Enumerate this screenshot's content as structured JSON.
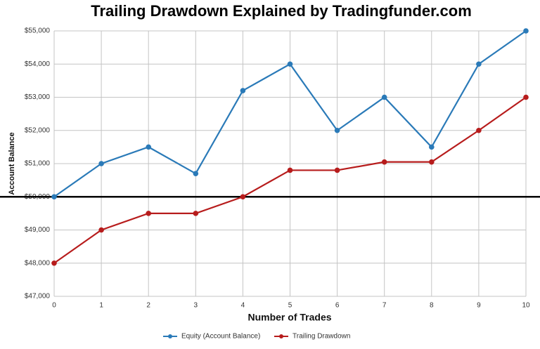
{
  "chart_data": {
    "type": "line",
    "title": "Trailing Drawdown Explained by Tradingfunder.com",
    "x_label": "Number of Trades",
    "y_label": "Account Balance",
    "x": [
      0,
      1,
      2,
      3,
      4,
      5,
      6,
      7,
      8,
      9,
      10
    ],
    "xlim": [
      0,
      10
    ],
    "xticks": [
      0,
      1,
      2,
      3,
      4,
      5,
      6,
      7,
      8,
      9,
      10
    ],
    "ylim": [
      47000,
      55000
    ],
    "yticks": [
      {
        "value": 47000,
        "label": "$47,000"
      },
      {
        "value": 48000,
        "label": "$48,000"
      },
      {
        "value": 49000,
        "label": "$49,000"
      },
      {
        "value": 50000,
        "label": "$50,000"
      },
      {
        "value": 51000,
        "label": "$51,000"
      },
      {
        "value": 52000,
        "label": "$52,000"
      },
      {
        "value": 53000,
        "label": "$53,000"
      },
      {
        "value": 54000,
        "label": "$54,000"
      },
      {
        "value": 55000,
        "label": "$55,000"
      }
    ],
    "grid": true,
    "reference_line": 50000,
    "legend": "bottom",
    "series": [
      {
        "name": "Equity (Account Balance)",
        "color": "#2a7ab8",
        "values": [
          50000,
          51000,
          51500,
          50700,
          53200,
          54000,
          52000,
          53000,
          51500,
          54000,
          55000
        ]
      },
      {
        "name": "Trailing Drawdown",
        "color": "#b71c1c",
        "values": [
          48000,
          49000,
          49500,
          49500,
          50000,
          50800,
          50800,
          51050,
          51050,
          52000,
          53000
        ]
      }
    ]
  }
}
